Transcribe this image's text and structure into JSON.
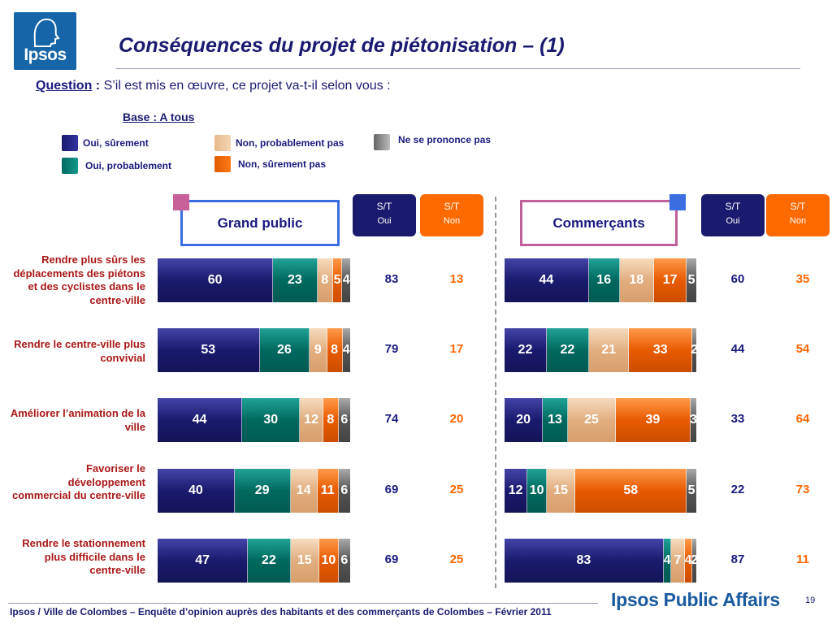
{
  "logo": {
    "text": "Ipsos"
  },
  "title": "Conséquences du projet de piétonisation – (1)",
  "question": {
    "label": "Question",
    "colon": " :",
    "text": " S’il est mis en œuvre, ce projet va-t-il selon vous :"
  },
  "base": "Base : A tous",
  "legend": [
    {
      "label": "Oui, sûrement",
      "color": "#1a1a6e"
    },
    {
      "label": "Oui, probablement",
      "color": "#00695f"
    },
    {
      "label": "Non, probablement pas",
      "color": "#e2ae80"
    },
    {
      "label": "Non, sûrement pas",
      "color": "#e85a00"
    },
    {
      "label": "Ne se prononce pas",
      "color": "#555555"
    }
  ],
  "panels": {
    "grand_public": {
      "title": "Grand public"
    },
    "commercants": {
      "title": "Commerçants"
    }
  },
  "st_headers": {
    "oui": {
      "top": "S/T",
      "bottom": "Oui"
    },
    "non": {
      "top": "S/T",
      "bottom": "Non"
    }
  },
  "rows": [
    {
      "label": "Rendre plus sûrs les déplacements des piétons et des cyclistes dans le centre-ville"
    },
    {
      "label": "Rendre le centre-ville plus convivial"
    },
    {
      "label": "Améliorer l’animation de la ville"
    },
    {
      "label": "Favoriser le développement commercial du centre-ville"
    },
    {
      "label": "Rendre le stationnement plus difficile dans le centre-ville"
    }
  ],
  "chart_data": [
    {
      "type": "bar",
      "orientation": "horizontal",
      "stacked": true,
      "title": "Grand public",
      "categories": [
        "Rendre plus sûrs les déplacements des piétons et des cyclistes dans le centre-ville",
        "Rendre le centre-ville plus convivial",
        "Améliorer l’animation de la ville",
        "Favoriser le développement commercial du centre-ville",
        "Rendre le stationnement plus difficile dans le centre-ville"
      ],
      "series": [
        {
          "name": "Oui, sûrement",
          "values": [
            60,
            53,
            44,
            40,
            47
          ]
        },
        {
          "name": "Oui, probablement",
          "values": [
            23,
            26,
            30,
            29,
            22
          ]
        },
        {
          "name": "Non, probablement pas",
          "values": [
            8,
            9,
            12,
            14,
            15
          ]
        },
        {
          "name": "Non, sûrement pas",
          "values": [
            5,
            8,
            8,
            11,
            10
          ]
        },
        {
          "name": "Ne se prononce pas",
          "values": [
            4,
            4,
            6,
            6,
            6
          ]
        }
      ],
      "segment_labels": [
        [
          "60",
          "23",
          "8",
          "5",
          "4"
        ],
        [
          "53",
          "26",
          "9",
          "8",
          "4"
        ],
        [
          "44",
          "30",
          "12",
          "8",
          "6"
        ],
        [
          "40",
          "29",
          "14",
          "11",
          "6"
        ],
        [
          "47",
          "22",
          "15",
          "10",
          "6"
        ]
      ],
      "st_oui": [
        83,
        79,
        74,
        69,
        69
      ],
      "st_non": [
        13,
        17,
        20,
        25,
        25
      ],
      "xlim": [
        0,
        100
      ]
    },
    {
      "type": "bar",
      "orientation": "horizontal",
      "stacked": true,
      "title": "Commerçants",
      "categories": [
        "Rendre plus sûrs les déplacements des piétons et des cyclistes dans le centre-ville",
        "Rendre le centre-ville plus convivial",
        "Améliorer l’animation de la ville",
        "Favoriser le développement commercial du centre-ville",
        "Rendre le stationnement plus difficile dans le centre-ville"
      ],
      "series": [
        {
          "name": "Oui, sûrement",
          "values": [
            44,
            22,
            20,
            12,
            83
          ]
        },
        {
          "name": "Oui, probablement",
          "values": [
            16,
            22,
            13,
            10,
            4
          ]
        },
        {
          "name": "Non, probablement pas",
          "values": [
            18,
            21,
            25,
            15,
            7
          ]
        },
        {
          "name": "Non, sûrement pas",
          "values": [
            17,
            33,
            39,
            58,
            4
          ]
        },
        {
          "name": "Ne se prononce pas",
          "values": [
            5,
            2,
            3,
            5,
            2
          ]
        }
      ],
      "segment_labels": [
        [
          "44",
          "16",
          "18",
          "17",
          "5"
        ],
        [
          "22",
          "22",
          "21",
          "33",
          "2"
        ],
        [
          "20",
          "13",
          "25",
          "39",
          "3"
        ],
        [
          "12",
          "10",
          "15",
          "58",
          "5"
        ],
        [
          "83",
          "4",
          "7",
          "4",
          "2"
        ]
      ],
      "st_oui": [
        60,
        44,
        33,
        22,
        87
      ],
      "st_non": [
        35,
        54,
        64,
        73,
        11
      ],
      "xlim": [
        0,
        100
      ]
    }
  ],
  "footer": "Ipsos / Ville de Colombes – Enquête d’opinion auprès des habitants et des commerçants de Colombes – Février 2011",
  "brand": "Ipsos Public Affairs",
  "page_number": "19"
}
